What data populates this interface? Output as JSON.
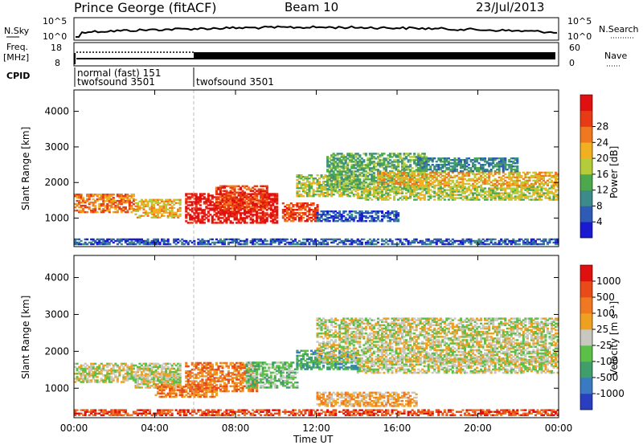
{
  "header": {
    "station": "Prince George (fitACF)",
    "beam": "Beam 10",
    "date": "23/Jul/2013"
  },
  "top_panels": {
    "nsky_label": "N.Sky",
    "nsky_ticks": [
      "10^5",
      "10^0"
    ],
    "nsearch_label": "N.Search",
    "nsearch_ticks": [
      "10^5",
      "10^0"
    ],
    "freq_label": [
      "Freq.",
      "[MHz]"
    ],
    "freq_ticks": [
      "18",
      "8"
    ],
    "nave_label": "Nave",
    "nave_ticks": [
      "60",
      "0"
    ],
    "cpid_label": "CPID",
    "cpid_entries": [
      {
        "start_hour": 0,
        "lines": [
          "normal (fast) 151",
          "twofsound 3501"
        ]
      },
      {
        "start_hour": 6,
        "lines": [
          "twofsound 3501"
        ]
      }
    ]
  },
  "chart_data": [
    {
      "type": "heatmap",
      "name": "power",
      "ylabel": "Slant Range [km]",
      "xlabel": "",
      "ylim": [
        200,
        4600
      ],
      "y_ticks": [
        1000,
        2000,
        3000,
        4000
      ],
      "xlim": [
        0,
        24
      ],
      "x_ticks": [
        "00:00",
        "04:00",
        "08:00",
        "12:00",
        "16:00",
        "20:00",
        "00:00"
      ],
      "colorbar": {
        "label": "Power [dB]",
        "ticks": [
          "4",
          "8",
          "12",
          "16",
          "20",
          "24",
          "28"
        ],
        "colors": [
          "#1a1ad0",
          "#2d5bb5",
          "#3d8a8a",
          "#4ca84c",
          "#b5cc3a",
          "#f0b020",
          "#f07820",
          "#e83a14",
          "#e01010"
        ]
      },
      "echo_regions": [
        {
          "t0": 0.0,
          "t1": 3.0,
          "r0": 1150,
          "r1": 1650,
          "level": 6
        },
        {
          "t0": 3.0,
          "t1": 5.2,
          "r0": 1000,
          "r1": 1500,
          "level": 5
        },
        {
          "t0": 5.5,
          "t1": 10.0,
          "r0": 850,
          "r1": 1700,
          "level": 8
        },
        {
          "t0": 7.0,
          "t1": 9.5,
          "r0": 1250,
          "r1": 1900,
          "level": 7
        },
        {
          "t0": 10.3,
          "t1": 12.0,
          "r0": 900,
          "r1": 1400,
          "level": 7
        },
        {
          "t0": 11.0,
          "t1": 14.0,
          "r0": 1600,
          "r1": 2200,
          "level": 4
        },
        {
          "t0": 12.5,
          "t1": 17.5,
          "r0": 1800,
          "r1": 2800,
          "level": 3
        },
        {
          "t0": 14.0,
          "t1": 24.0,
          "r0": 1500,
          "r1": 1900,
          "level": 4
        },
        {
          "t0": 15.0,
          "t1": 24.0,
          "r0": 1900,
          "r1": 2300,
          "level": 5
        },
        {
          "t0": 17.0,
          "t1": 22.0,
          "r0": 2300,
          "r1": 2700,
          "level": 2
        },
        {
          "t0": 12.0,
          "t1": 16.0,
          "r0": 900,
          "r1": 1200,
          "level": 1
        },
        {
          "t0": 0.0,
          "t1": 24.0,
          "r0": 250,
          "r1": 400,
          "level": 1
        }
      ]
    },
    {
      "type": "heatmap",
      "name": "velocity",
      "ylabel": "Slant Range [km]",
      "xlabel": "Time UT",
      "ylim": [
        200,
        4600
      ],
      "y_ticks": [
        1000,
        2000,
        3000,
        4000
      ],
      "xlim": [
        0,
        24
      ],
      "x_ticks": [
        "00:00",
        "04:00",
        "08:00",
        "12:00",
        "16:00",
        "20:00",
        "00:00"
      ],
      "colorbar": {
        "label": "Velocity [m s⁻¹]",
        "ticks": [
          "1000",
          "500",
          "100",
          "25",
          "-25",
          "-100",
          "-500",
          "-1000"
        ],
        "colors": [
          "#2a3fbf",
          "#3a7ac0",
          "#3f9e6a",
          "#5cc048",
          "#c8c8c0",
          "#f0a020",
          "#f07820",
          "#e84a18",
          "#e01010"
        ]
      },
      "echo_regions": [
        {
          "t0": 0.0,
          "t1": 5.2,
          "r0": 1150,
          "r1": 1650,
          "level": 4
        },
        {
          "t0": 3.0,
          "t1": 5.2,
          "r0": 1000,
          "r1": 1400,
          "level": 4
        },
        {
          "t0": 4.0,
          "t1": 7.0,
          "r0": 750,
          "r1": 1100,
          "level": 6
        },
        {
          "t0": 5.5,
          "t1": 9.0,
          "r0": 900,
          "r1": 1700,
          "level": 6
        },
        {
          "t0": 8.5,
          "t1": 11.0,
          "r0": 1000,
          "r1": 1700,
          "level": 3
        },
        {
          "t0": 11.0,
          "t1": 14.0,
          "r0": 1500,
          "r1": 2000,
          "level": 2
        },
        {
          "t0": 12.0,
          "t1": 24.0,
          "r0": 1700,
          "r1": 2900,
          "level": 4
        },
        {
          "t0": 14.0,
          "t1": 24.0,
          "r0": 1400,
          "r1": 1800,
          "level": 4
        },
        {
          "t0": 12.0,
          "t1": 17.0,
          "r0": 500,
          "r1": 900,
          "level": 5
        },
        {
          "t0": 0.0,
          "t1": 24.0,
          "r0": 250,
          "r1": 400,
          "level": 7
        }
      ]
    }
  ]
}
